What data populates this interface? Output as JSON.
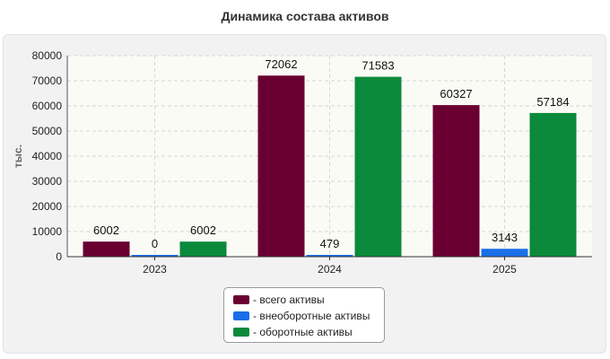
{
  "chart_data": {
    "type": "bar",
    "title": "Динамика состава активов",
    "ylabel": "тыс.",
    "xlabel": "",
    "categories": [
      "2023",
      "2024",
      "2025"
    ],
    "ylim": [
      0,
      80000
    ],
    "yticks": [
      0,
      10000,
      20000,
      30000,
      40000,
      50000,
      60000,
      70000,
      80000
    ],
    "grid": true,
    "legend_position": "bottom",
    "series": [
      {
        "name": "- всего активы",
        "color": "#6a0032",
        "values": [
          6002,
          72062,
          60327
        ]
      },
      {
        "name": "- внеоборотные активы",
        "color": "#1a6fe8",
        "values": [
          0,
          479,
          3143
        ]
      },
      {
        "name": "- оборотные активы",
        "color": "#0a8a3a",
        "values": [
          6002,
          71583,
          57184
        ]
      }
    ]
  }
}
